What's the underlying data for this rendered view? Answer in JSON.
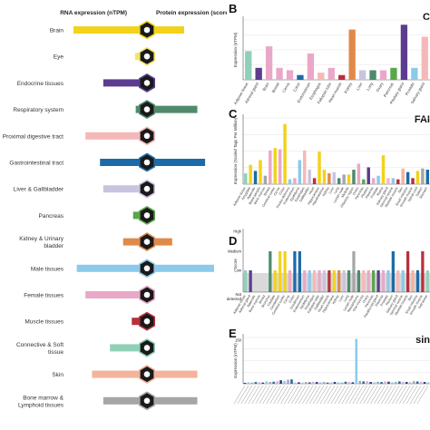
{
  "left": {
    "rna_header": "RNA expression (nTPM)",
    "protein_header": "Protein expression (score)",
    "rows": [
      {
        "label": [
          "Brain"
        ],
        "color": "#f2d21b",
        "rna": 1.0,
        "protein": 0.5,
        "icon": "brain-icon"
      },
      {
        "label": [
          "Eye"
        ],
        "color": "#f3e56c",
        "rna": 0.07,
        "protein": 0.0,
        "icon": "eye-icon"
      },
      {
        "label": [
          "Endocrine tissues"
        ],
        "color": "#5b3c8e",
        "rna": 0.55,
        "protein": 0.0,
        "icon": "thyroid-icon"
      },
      {
        "label": [
          "Respiratory system"
        ],
        "color": "#4f8a6c",
        "rna": 0.06,
        "protein": 0.72,
        "icon": "lungs-icon"
      },
      {
        "label": [
          "Proximal digestive tract"
        ],
        "color": "#f5b8b8",
        "rna": 0.82,
        "protein": 0.0,
        "icon": "mouth-icon"
      },
      {
        "label": [
          "Gastrointestinal tract"
        ],
        "color": "#1d6aa8",
        "rna": 0.6,
        "protein": 0.85,
        "icon": "stomach-icon"
      },
      {
        "label": [
          "Liver & Gallbladder"
        ],
        "color": "#c9c3e0",
        "rna": 0.55,
        "protein": 0.0,
        "icon": "liver-icon"
      },
      {
        "label": [
          "Pancreas"
        ],
        "color": "#5aa64b",
        "rna": 0.1,
        "protein": 0.0,
        "icon": "pancreas-icon"
      },
      {
        "label": [
          "Kidney & Urinary",
          "bladder"
        ],
        "color": "#e08a4a",
        "rna": 0.25,
        "protein": 0.3,
        "icon": "kidney-icon"
      },
      {
        "label": [
          "Male tissues"
        ],
        "color": "#8dc9ea",
        "rna": 0.95,
        "protein": 1.0,
        "icon": "male-icon"
      },
      {
        "label": [
          "Female tissues"
        ],
        "color": "#eaa8c8",
        "rna": 0.82,
        "protein": 0.0,
        "icon": "female-icon"
      },
      {
        "label": [
          "Muscle tissues"
        ],
        "color": "#b8303c",
        "rna": 0.12,
        "protein": 0.0,
        "icon": "muscle-icon"
      },
      {
        "label": [
          "Connective & Soft",
          "tissue"
        ],
        "color": "#8fd1b8",
        "rna": 0.45,
        "protein": 0.0,
        "icon": "connective-icon"
      },
      {
        "label": [
          "Skin"
        ],
        "color": "#f4b39a",
        "rna": 0.72,
        "protein": 0.72,
        "icon": "skin-icon"
      },
      {
        "label": [
          "Bone marrow &",
          "Lymphoid tissues"
        ],
        "color": "#a6a6a6",
        "rna": 0.55,
        "protein": 0.72,
        "icon": "lymph-icon"
      }
    ]
  },
  "right": {
    "panels": [
      {
        "letter": "B",
        "title": "C",
        "ylabel": "Expression (nTPM)"
      },
      {
        "letter": "C",
        "title": "FAI",
        "ylabel": "Expression (Scaled Tags Per Million)"
      },
      {
        "letter": "D",
        "title": "",
        "ylabel": "Score",
        "ticks": [
          "High",
          "Medium",
          "Low",
          "Not detected"
        ]
      },
      {
        "letter": "E",
        "title": "sin",
        "ylabel": "Expression (nTPM)",
        "ytick": "150"
      }
    ]
  },
  "chart_data": [
    {
      "type": "bar",
      "title": "C",
      "ylabel": "Expression (nTPM)",
      "categories": [
        "Adipose tissue",
        "Adrenal gland",
        "Brain",
        "Breast",
        "Cervix",
        "Colon",
        "Endometrium",
        "Esophagus",
        "Fallopian tube",
        "Heart muscle",
        "Kidney",
        "Liver",
        "Lung",
        "Ovary",
        "Pancreas",
        "Pituitary gland",
        "Prostate",
        "Salivary gland"
      ],
      "values": [
        12,
        5,
        14,
        5,
        4,
        2,
        11,
        3,
        5,
        2,
        21,
        4,
        4,
        4,
        5,
        23,
        5,
        18
      ],
      "colors": [
        "#8fd1b8",
        "#5b3c8e",
        "#eaa8c8",
        "#eaa8c8",
        "#eaa8c8",
        "#1d6aa8",
        "#eaa8c8",
        "#f5b8b8",
        "#eaa8c8",
        "#b8303c",
        "#e08a4a",
        "#c9c3e0",
        "#4f8a6c",
        "#eaa8c8",
        "#5aa64b",
        "#5b3c8e",
        "#8dc9ea",
        "#f5b8b8"
      ],
      "ylim": [
        0,
        25
      ]
    },
    {
      "type": "bar",
      "title": "FAI",
      "ylabel": "Expression (Scaled Tags Per Million)",
      "categories": [
        "Adipose tissue",
        "Amygdala",
        "Appendix",
        "Basal ganglia",
        "Bone marrow",
        "Breast",
        "Cerebral cortex",
        "Cervix",
        "Colon",
        "Ductus deferens",
        "Endometrium",
        "Epididymis",
        "Esophagus",
        "Gallbladder",
        "Heart",
        "Hippocampus",
        "Hypothalamus",
        "Kidney",
        "Liver",
        "Lung",
        "Lymph node",
        "Medulla",
        "Olfactory region",
        "Ovary",
        "Pancreas",
        "Pituitary",
        "Placenta",
        "Prostate",
        "Retina",
        "Salivary gland",
        "Seminal vesicle",
        "Skeletal muscle",
        "Skin",
        "Small intestine",
        "Smooth muscle",
        "Spinal cord",
        "Spleen",
        "Stomach"
      ],
      "values": [
        9,
        16,
        11,
        20,
        7,
        28,
        30,
        29,
        50,
        4,
        5,
        20,
        28,
        12,
        5,
        27,
        12,
        9,
        10,
        5,
        8,
        8,
        12,
        17,
        4,
        14,
        5,
        7,
        24,
        5,
        5,
        4,
        13,
        10,
        5,
        11,
        13,
        12
      ],
      "colors": [
        "#8fd1b8",
        "#f2d21b",
        "#1d6aa8",
        "#f2d21b",
        "#a6a6a6",
        "#eaa8c8",
        "#f2d21b",
        "#eaa8c8",
        "#f2d21b",
        "#8dc9ea",
        "#eaa8c8",
        "#8dc9ea",
        "#f5b8b8",
        "#c9c3e0",
        "#b8303c",
        "#f2d21b",
        "#f2d21b",
        "#e08a4a",
        "#c9c3e0",
        "#4f8a6c",
        "#a6a6a6",
        "#f2d21b",
        "#4f8a6c",
        "#eaa8c8",
        "#5aa64b",
        "#5b3c8e",
        "#eaa8c8",
        "#8dc9ea",
        "#f2d21b",
        "#f5b8b8",
        "#8dc9ea",
        "#b8303c",
        "#f4b39a",
        "#1d6aa8",
        "#b8303c",
        "#f2d21b",
        "#a6a6a6",
        "#1d6aa8"
      ],
      "ylim": [
        0,
        55
      ]
    },
    {
      "type": "bar",
      "ylabel": "Score",
      "yticks": [
        "Not detected",
        "Low",
        "Medium",
        "High"
      ],
      "categories": [
        "Adipose tissue",
        "Adrenal gland",
        "Appendix",
        "Bone marrow",
        "Breast",
        "Bronchus",
        "Caudate",
        "Cerebellum",
        "Cerebral cortex",
        "Cervix",
        "Colon",
        "Duodenum",
        "Endometrium",
        "Epididymis",
        "Esophagus",
        "Fallopian tube",
        "Gallbladder",
        "Heart muscle",
        "Hippocampus",
        "Kidney",
        "Liver",
        "Lung",
        "Lymph node",
        "Nasopharynx",
        "Oral mucosa",
        "Ovary",
        "Pancreas",
        "Parathyroid gland",
        "Placenta",
        "Prostate",
        "Rectum",
        "Salivary gland",
        "Seminal vesicle",
        "Skeletal muscle",
        "Skin",
        "Small intestine",
        "Smooth muscle",
        "Soft tissue"
      ],
      "values": [
        1,
        1,
        0,
        0,
        0,
        2,
        1,
        2,
        2,
        1,
        2,
        2,
        1,
        1,
        1,
        1,
        1,
        1,
        1,
        1,
        1,
        1,
        2,
        1,
        1,
        1,
        1,
        1,
        1,
        1,
        2,
        1,
        1,
        2,
        1,
        1,
        2,
        1
      ],
      "colors": [
        "#8fd1b8",
        "#5b3c8e",
        "#1d6aa8",
        "#a6a6a6",
        "#eaa8c8",
        "#4f8a6c",
        "#f2d21b",
        "#f2d21b",
        "#f2d21b",
        "#eaa8c8",
        "#1d6aa8",
        "#1d6aa8",
        "#eaa8c8",
        "#8dc9ea",
        "#f5b8b8",
        "#eaa8c8",
        "#c9c3e0",
        "#b8303c",
        "#f2d21b",
        "#e08a4a",
        "#c9c3e0",
        "#4f8a6c",
        "#a6a6a6",
        "#4f8a6c",
        "#f5b8b8",
        "#eaa8c8",
        "#5aa64b",
        "#5b3c8e",
        "#eaa8c8",
        "#8dc9ea",
        "#1d6aa8",
        "#f5b8b8",
        "#8dc9ea",
        "#b8303c",
        "#f4b39a",
        "#1d6aa8",
        "#b8303c",
        "#8fd1b8"
      ]
    },
    {
      "type": "bar",
      "title": "sin",
      "ylabel": "Expression (nTPM)",
      "values": [
        3,
        5,
        4,
        6,
        5,
        4,
        8,
        6,
        7,
        9,
        12,
        10,
        14,
        15,
        4,
        5,
        4,
        6,
        5,
        7,
        6,
        5,
        6,
        4,
        5,
        6,
        5,
        4,
        7,
        6,
        5,
        155,
        10,
        8,
        9,
        6,
        5,
        7,
        6,
        8,
        7,
        5,
        6,
        8,
        7,
        6,
        5,
        9,
        8,
        7,
        6,
        5
      ],
      "ylim": [
        0,
        160
      ]
    }
  ]
}
